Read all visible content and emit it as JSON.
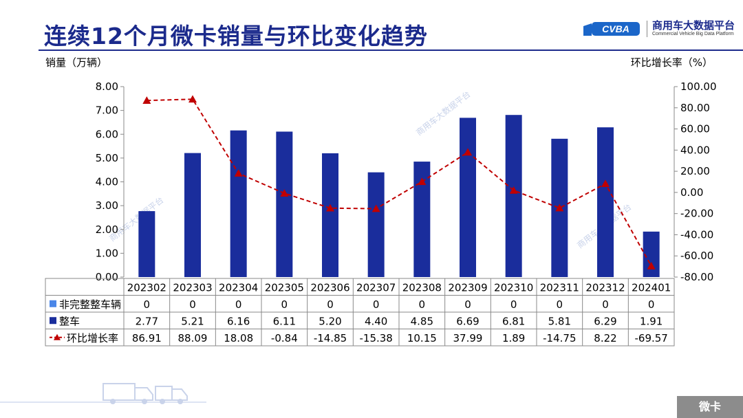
{
  "page": {
    "title": "连续12个月微卡销量与环比变化趋势",
    "logo_cn": "商用车大数据平台",
    "logo_en": "Commercial Vehicle Big Data Platform",
    "logo_mark_text": "CVBA",
    "watermark_text": "商用车大数据平台",
    "footer_tag": "微卡"
  },
  "chart_data": {
    "type": "bar",
    "title": "连续12个月微卡销量与环比变化趋势",
    "ylabel_left": "销量（万辆）",
    "ylabel_right": "环比增长率（%）",
    "ylim_left": [
      0,
      8
    ],
    "yticks_left": [
      "8.00",
      "7.00",
      "6.00",
      "5.00",
      "4.00",
      "3.00",
      "2.00",
      "1.00",
      "0.00"
    ],
    "ylim_right": [
      -80,
      100
    ],
    "yticks_right": [
      "100.00",
      "80.00",
      "60.00",
      "40.00",
      "20.00",
      "0.00",
      "-20.00",
      "-40.00",
      "-60.00",
      "-80.00"
    ],
    "categories": [
      "202302",
      "202303",
      "202304",
      "202305",
      "202306",
      "202307",
      "202308",
      "202309",
      "202310",
      "202311",
      "202312",
      "202401"
    ],
    "series": [
      {
        "name": "非完整整车辆",
        "type": "bar",
        "color": "#4a86e8",
        "values": [
          0,
          0,
          0,
          0,
          0,
          0,
          0,
          0,
          0,
          0,
          0,
          0
        ],
        "labels": [
          "0",
          "0",
          "0",
          "0",
          "0",
          "0",
          "0",
          "0",
          "0",
          "0",
          "0",
          "0"
        ]
      },
      {
        "name": "整车",
        "type": "bar",
        "color": "#1a2d9c",
        "values": [
          2.77,
          5.21,
          6.16,
          6.11,
          5.2,
          4.4,
          4.85,
          6.69,
          6.81,
          5.81,
          6.29,
          1.91
        ],
        "labels": [
          "2.77",
          "5.21",
          "6.16",
          "6.11",
          "5.20",
          "4.40",
          "4.85",
          "6.69",
          "6.81",
          "5.81",
          "6.29",
          "1.91"
        ]
      },
      {
        "name": "环比增长率",
        "type": "line",
        "axis": "right",
        "color": "#c00000",
        "line_style": "dashed",
        "marker": "triangle",
        "values": [
          86.91,
          88.09,
          18.08,
          -0.84,
          -14.85,
          -15.38,
          10.15,
          37.99,
          1.89,
          -14.75,
          8.22,
          -69.57
        ],
        "labels": [
          "86.91",
          "88.09",
          "18.08",
          "-0.84",
          "-14.85",
          "-15.38",
          "10.15",
          "37.99",
          "1.89",
          "-14.75",
          "8.22",
          "-69.57"
        ]
      }
    ],
    "grid": false,
    "legend": "data-table-below"
  }
}
